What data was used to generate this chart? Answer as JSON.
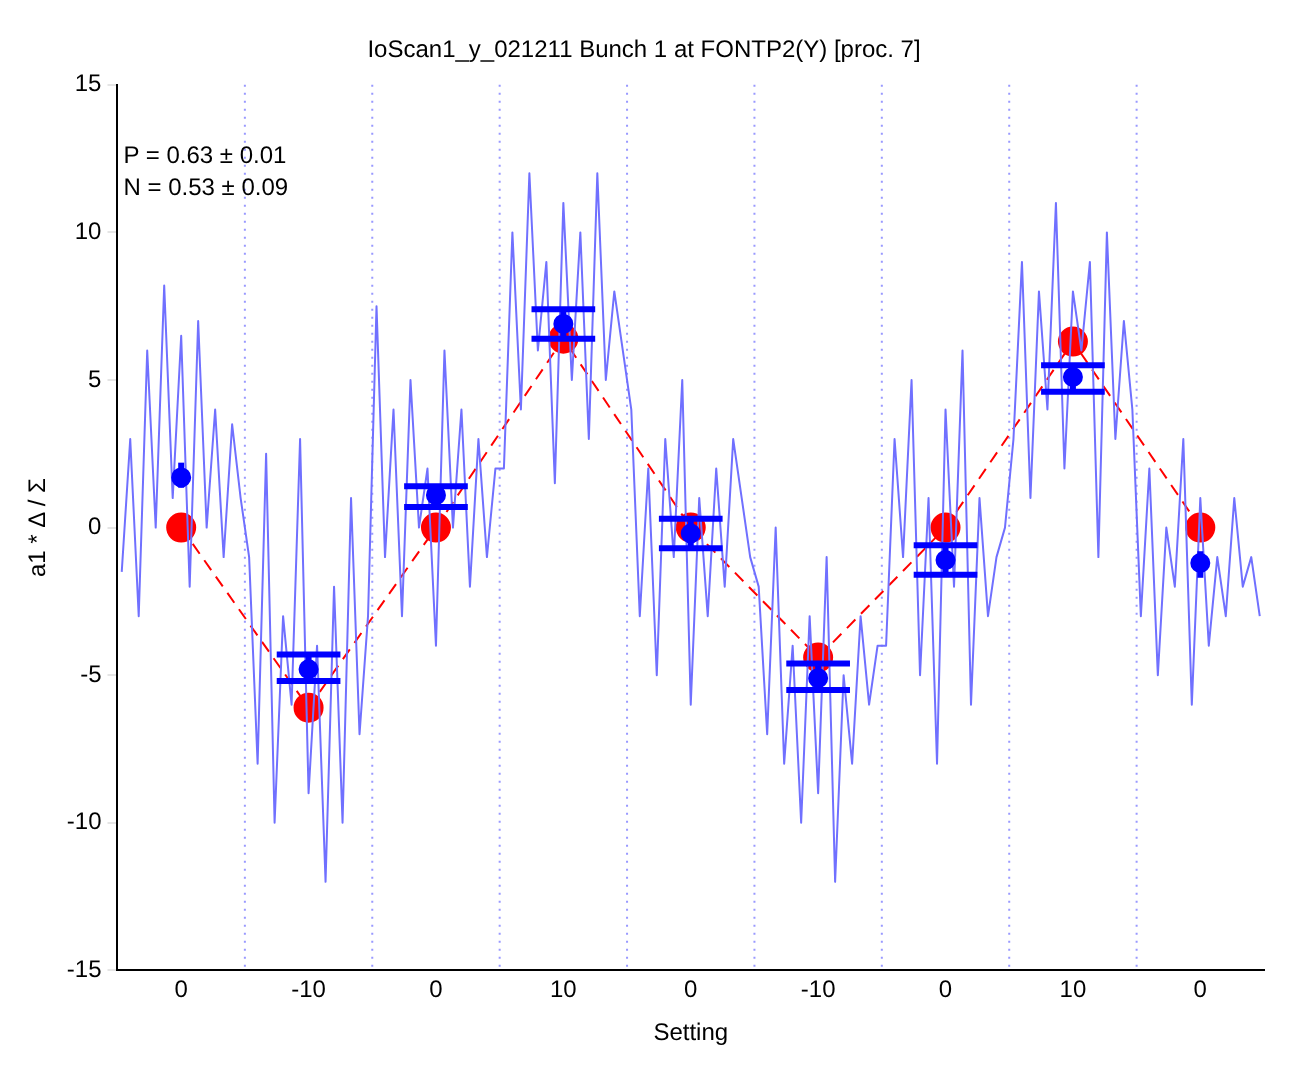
{
  "chart_data": {
    "type": "line",
    "title": "IoScan1_y_021211 Bunch 1 at FONTP2(Y) [proc. 7]",
    "xlabel": "Setting",
    "ylabel": "a1 * Δ / Σ",
    "annotations": [
      "P = 0.63 ± 0.01",
      "N = 0.53 ± 0.09"
    ],
    "categories": [
      null,
      null,
      null,
      null,
      null,
      null,
      null,
      "0",
      null,
      null,
      null,
      null,
      null,
      null,
      null,
      null,
      null,
      null,
      null,
      null,
      null,
      null,
      "-10",
      null,
      null,
      null,
      null,
      null,
      null,
      null,
      null,
      null,
      null,
      null,
      null,
      null,
      null,
      "0",
      null,
      null,
      null,
      null,
      null,
      null,
      null,
      null,
      null,
      null,
      null,
      null,
      null,
      null,
      "10",
      null,
      null,
      null,
      null,
      null,
      null,
      null,
      null,
      null,
      null,
      null,
      null,
      null,
      null,
      "0",
      null,
      null,
      null,
      null,
      null,
      null,
      null,
      null,
      null,
      null,
      null,
      null,
      null,
      null,
      "-10",
      null,
      null,
      null,
      null,
      null,
      null,
      null,
      null,
      null,
      null,
      null,
      null,
      null,
      null,
      "0",
      null,
      null,
      null,
      null,
      null,
      null,
      null,
      null,
      null,
      null,
      null,
      null,
      null,
      null,
      "10",
      null,
      null,
      null,
      null,
      null,
      null,
      null,
      null,
      null,
      null,
      null,
      null,
      null,
      null,
      "0",
      null,
      null,
      null,
      null,
      null,
      null,
      null
    ],
    "ylim": [
      -15,
      15
    ],
    "yticks": [
      -15,
      -10,
      -5,
      0,
      5,
      10,
      15
    ],
    "grid": "x",
    "legend": false,
    "series": [
      {
        "color": "#7070ff",
        "marker": "none",
        "line_style": "solid",
        "values": [
          -1.5,
          3,
          -3,
          6,
          0,
          8.2,
          1,
          6.5,
          -2,
          7,
          0,
          4,
          -1,
          3.5,
          1,
          -1,
          -8,
          2.5,
          -10,
          -3,
          -6,
          3,
          -9,
          -4,
          -12,
          -2,
          -10,
          1,
          -7,
          -3,
          7.5,
          -1,
          4,
          -3,
          5,
          0,
          2,
          -4,
          6,
          0,
          4,
          -2,
          3,
          -1,
          2,
          2,
          10,
          4,
          12,
          6,
          9,
          1.5,
          11,
          5,
          10,
          3,
          12,
          5,
          8,
          6,
          4,
          -3,
          2,
          -5,
          3,
          -1,
          5,
          -6,
          1,
          -3,
          2,
          -2,
          3,
          1,
          -1,
          -2,
          -7,
          0,
          -8,
          -4,
          -10,
          -3,
          -9,
          -1,
          -12,
          -5,
          -8,
          -3,
          -6,
          -4,
          -4,
          3,
          -1,
          5,
          -5,
          1,
          -8,
          4,
          -2,
          6,
          -6,
          1,
          -3,
          -1,
          0,
          3,
          9,
          1,
          8,
          4,
          11,
          2,
          8,
          6,
          9,
          -1,
          10,
          3,
          7,
          4,
          -3,
          2,
          -5,
          0,
          -2,
          3,
          -6,
          1,
          -4,
          -1,
          -3,
          1,
          -2,
          -1,
          -3
        ]
      },
      {
        "type": "line",
        "color": "#ff0000",
        "marker": "circle",
        "line_style": "dashed",
        "values": [
          null,
          null,
          null,
          null,
          null,
          null,
          null,
          0,
          null,
          null,
          null,
          null,
          null,
          null,
          null,
          null,
          null,
          null,
          null,
          null,
          null,
          null,
          -6.1,
          null,
          null,
          null,
          null,
          null,
          null,
          null,
          null,
          null,
          null,
          null,
          null,
          null,
          null,
          0,
          null,
          null,
          null,
          null,
          null,
          null,
          null,
          null,
          null,
          null,
          null,
          null,
          null,
          null,
          6.4,
          null,
          null,
          null,
          null,
          null,
          null,
          null,
          null,
          null,
          null,
          null,
          null,
          null,
          null,
          0,
          null,
          null,
          null,
          null,
          null,
          null,
          null,
          null,
          null,
          null,
          null,
          null,
          null,
          null,
          -4.4,
          null,
          null,
          null,
          null,
          null,
          null,
          null,
          null,
          null,
          null,
          null,
          null,
          null,
          null,
          0,
          null,
          null,
          null,
          null,
          null,
          null,
          null,
          null,
          null,
          null,
          null,
          null,
          null,
          null,
          6.3,
          null,
          null,
          null,
          null,
          null,
          null,
          null,
          null,
          null,
          null,
          null,
          null,
          null,
          null,
          0,
          null,
          null,
          null,
          null,
          null,
          null,
          null
        ]
      },
      {
        "type": "scatter",
        "color": "#0000ff",
        "marker": "circle",
        "values": [
          null,
          null,
          null,
          null,
          null,
          null,
          null,
          1.7,
          null,
          null,
          null,
          null,
          null,
          null,
          null,
          null,
          null,
          null,
          null,
          null,
          null,
          null,
          -4.8,
          null,
          null,
          null,
          null,
          null,
          null,
          null,
          null,
          null,
          null,
          null,
          null,
          null,
          null,
          1.1,
          null,
          null,
          null,
          null,
          null,
          null,
          null,
          null,
          null,
          null,
          null,
          null,
          null,
          null,
          6.9,
          null,
          null,
          null,
          null,
          null,
          null,
          null,
          null,
          null,
          null,
          null,
          null,
          null,
          null,
          -0.2,
          null,
          null,
          null,
          null,
          null,
          null,
          null,
          null,
          null,
          null,
          null,
          null,
          null,
          null,
          -5.1,
          null,
          null,
          null,
          null,
          null,
          null,
          null,
          null,
          null,
          null,
          null,
          null,
          null,
          null,
          -1.1,
          null,
          null,
          null,
          null,
          null,
          null,
          null,
          null,
          null,
          null,
          null,
          null,
          null,
          null,
          5.1,
          null,
          null,
          null,
          null,
          null,
          null,
          null,
          null,
          null,
          null,
          null,
          null,
          null,
          null,
          -1.2,
          null,
          null,
          null,
          null,
          null,
          null,
          null
        ],
        "errors": [
          null,
          null,
          null,
          null,
          null,
          null,
          null,
          [
            1.35,
            2.2
          ],
          null,
          null,
          null,
          null,
          null,
          null,
          null,
          null,
          null,
          null,
          null,
          null,
          null,
          null,
          [
            -5.2,
            -4.3
          ],
          null,
          null,
          null,
          null,
          null,
          null,
          null,
          null,
          null,
          null,
          null,
          null,
          null,
          null,
          [
            0.7,
            1.4
          ],
          null,
          null,
          null,
          null,
          null,
          null,
          null,
          null,
          null,
          null,
          null,
          null,
          null,
          null,
          [
            6.4,
            7.4
          ],
          null,
          null,
          null,
          null,
          null,
          null,
          null,
          null,
          null,
          null,
          null,
          null,
          null,
          null,
          [
            -0.7,
            0.3
          ],
          null,
          null,
          null,
          null,
          null,
          null,
          null,
          null,
          null,
          null,
          null,
          null,
          null,
          null,
          [
            -5.5,
            -4.6
          ],
          null,
          null,
          null,
          null,
          null,
          null,
          null,
          null,
          null,
          null,
          null,
          null,
          null,
          null,
          [
            -1.6,
            -0.6
          ],
          null,
          null,
          null,
          null,
          null,
          null,
          null,
          null,
          null,
          null,
          null,
          null,
          null,
          null,
          [
            4.6,
            5.5
          ],
          null,
          null,
          null,
          null,
          null,
          null,
          null,
          null,
          null,
          null,
          null,
          null,
          null,
          null,
          [
            -1.7,
            -0.8
          ],
          null,
          null,
          null,
          null,
          null,
          null,
          null
        ]
      }
    ]
  }
}
